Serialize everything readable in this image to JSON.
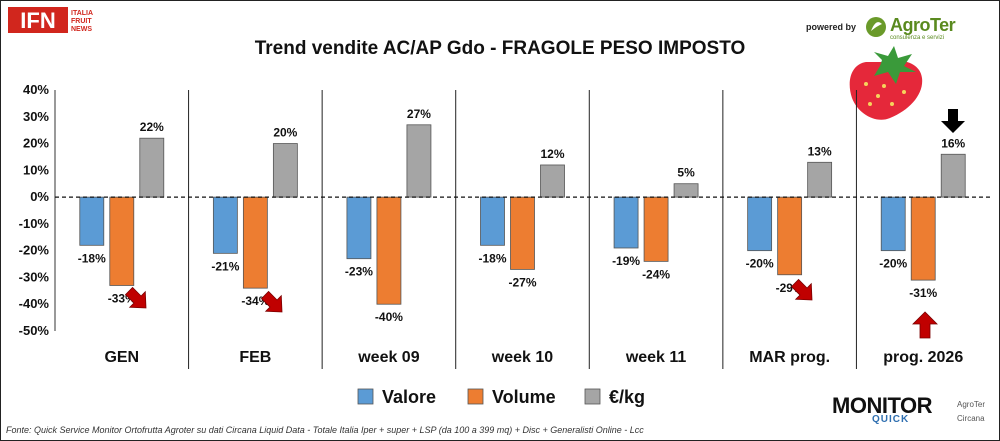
{
  "logo": {
    "main": "IFN",
    "sub1": "ITALIA",
    "sub2": "FRUIT",
    "sub3": "NEWS"
  },
  "branding": {
    "powered_by": "powered by",
    "agroter": "AgroTer",
    "agroter_tagline": "consulenza e servizi",
    "monitor": "MONITOR",
    "quick": "QUICK",
    "badge_agroter": "AgroTer",
    "badge_circana": "Circana"
  },
  "footer": "Fonte: Quick Service Monitor Ortofrutta Agroter su dati Circana Liquid Data - Totale Italia Iper + super + LSP (da 100 a 399 mq) + Disc + Generalisti Online - Lcc",
  "colors": {
    "valore": "#5b9bd5",
    "volume": "#ed7d31",
    "prezzo": "#a5a5a5",
    "arrow_red": "#c00000",
    "arrow_black": "#000000"
  },
  "chart_data": {
    "type": "bar",
    "title": "Trend vendite AC/AP Gdo - FRAGOLE PESO IMPOSTO",
    "categories": [
      "GEN",
      "FEB",
      "week 09",
      "week 10",
      "week 11",
      "MAR prog.",
      "prog. 2026"
    ],
    "series": [
      {
        "name": "Valore",
        "color": "#5b9bd5",
        "values": [
          -18,
          -21,
          -23,
          -18,
          -19,
          -20,
          -20
        ]
      },
      {
        "name": "Volume",
        "color": "#ed7d31",
        "values": [
          -33,
          -34,
          -40,
          -27,
          -24,
          -29,
          -31
        ]
      },
      {
        "name": "€/kg",
        "color": "#a5a5a5",
        "values": [
          22,
          20,
          27,
          12,
          5,
          13,
          16
        ]
      }
    ],
    "data_labels": {
      "valore": [
        "-18%",
        "-21%",
        "-23%",
        "-18%",
        "-19%",
        "-20%",
        "-20%"
      ],
      "volume": [
        "-33%",
        "-34%",
        "-40%",
        "-27%",
        "-24%",
        "-29%",
        "-31%"
      ],
      "prezzo": [
        "22%",
        "20%",
        "27%",
        "12%",
        "5%",
        "13%",
        "16%"
      ]
    },
    "yticks": [
      "40%",
      "30%",
      "20%",
      "10%",
      "0%",
      "-10%",
      "-20%",
      "-30%",
      "-40%",
      "-50%"
    ],
    "ytick_values": [
      40,
      30,
      20,
      10,
      0,
      -10,
      -20,
      -30,
      -40,
      -50
    ],
    "ylim": [
      -50,
      40
    ],
    "legend": {
      "position": "bottom",
      "items": [
        "Valore",
        "Volume",
        "€/kg"
      ]
    },
    "grid": false,
    "category_separators": true,
    "zero_line": "dashed"
  }
}
